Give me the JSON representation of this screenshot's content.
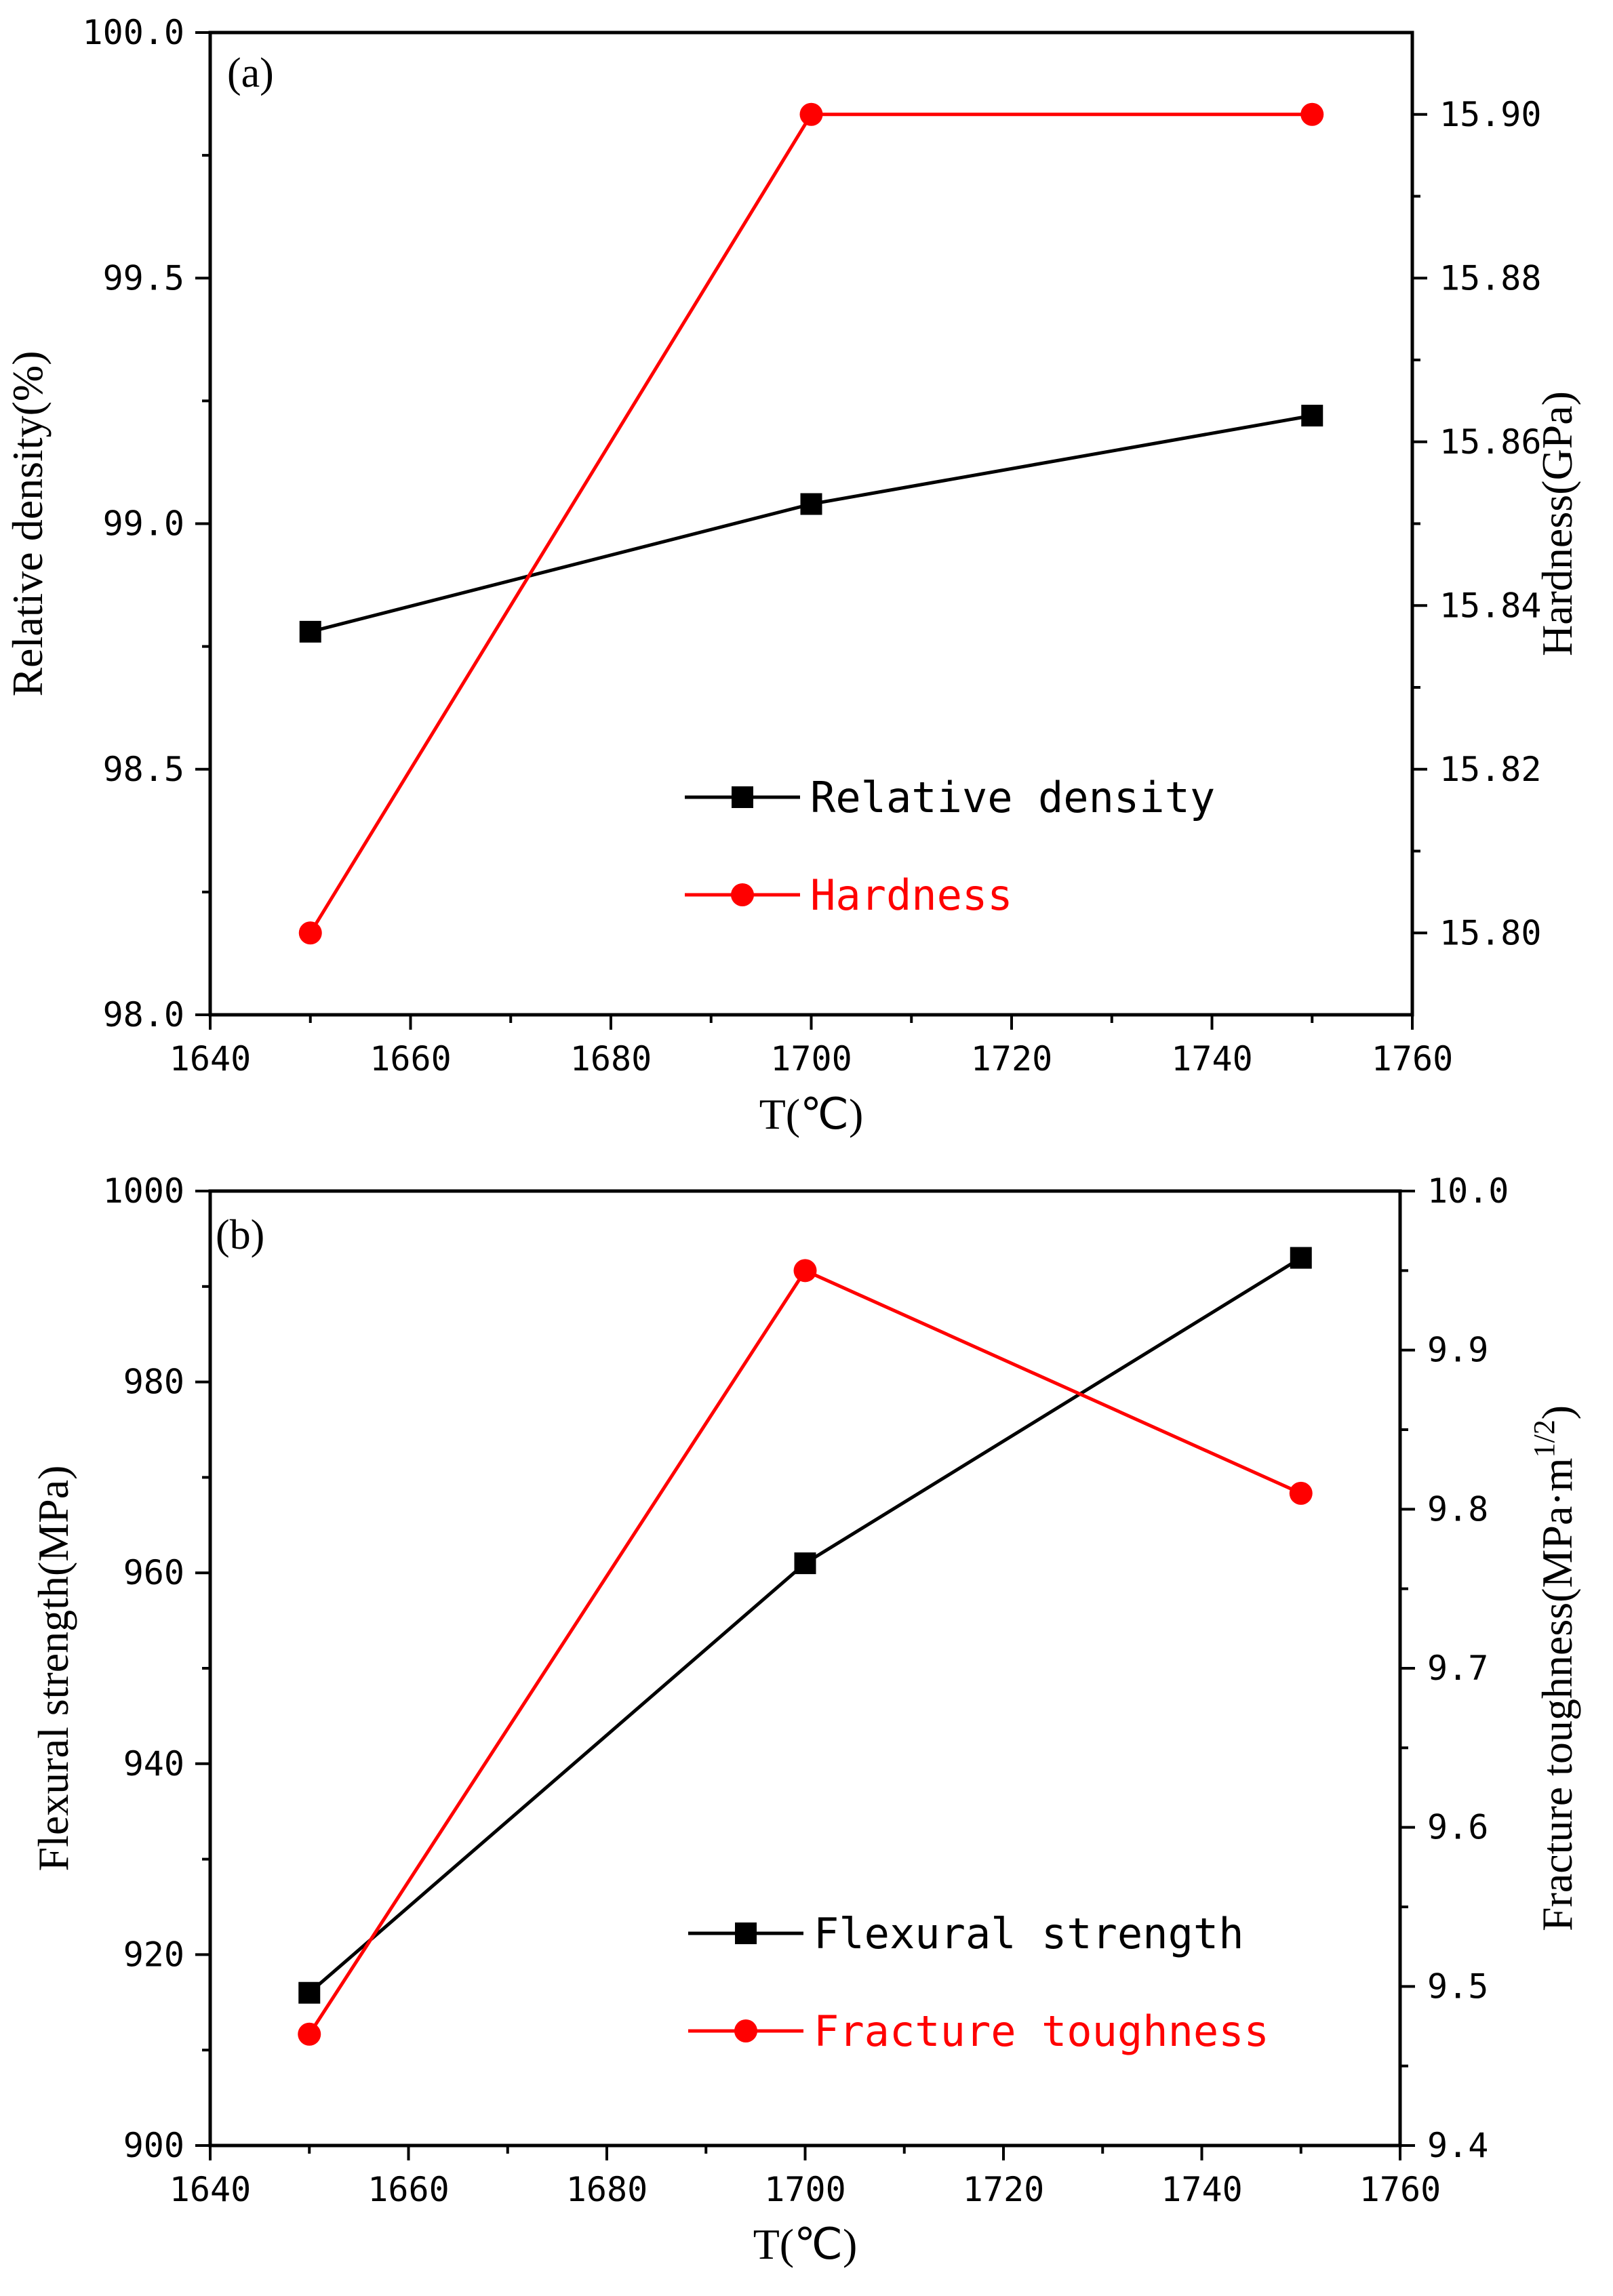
{
  "chart_data": [
    {
      "type": "line",
      "panel_label": "(a)",
      "xlabel": "T(℃)",
      "xlim": [
        1640,
        1760
      ],
      "xticks": [
        1640,
        1660,
        1680,
        1700,
        1720,
        1740,
        1760
      ],
      "xtick_labels": [
        "1640",
        "1660",
        "1680",
        "1700",
        "1720",
        "1740",
        "1760"
      ],
      "ylabel_left": "Relative density(%)",
      "ylim_left": [
        98.0,
        100.0
      ],
      "yticks_left": [
        98.0,
        98.5,
        99.0,
        99.5,
        100.0
      ],
      "ytick_labels_left": [
        "98.0",
        "98.5",
        "99.0",
        "99.5",
        "100.0"
      ],
      "ylabel_right": "Hardness(GPa)",
      "ylim_right": [
        15.79,
        15.91
      ],
      "yticks_right": [
        15.8,
        15.82,
        15.84,
        15.86,
        15.88,
        15.9
      ],
      "ytick_labels_right": [
        "15.80",
        "15.82",
        "15.84",
        "15.86",
        "15.88",
        "15.90"
      ],
      "x": [
        1650,
        1700,
        1750
      ],
      "series": [
        {
          "name": "Relative density",
          "axis": "left",
          "marker": "square",
          "color": "#000000",
          "values": [
            98.78,
            99.04,
            99.22
          ]
        },
        {
          "name": "Hardness",
          "axis": "right",
          "marker": "circle",
          "color": "#ff0000",
          "values": [
            15.8,
            15.9,
            15.9
          ]
        }
      ],
      "legend": "bottom-right",
      "grid": false
    },
    {
      "type": "line",
      "panel_label": "(b)",
      "xlabel": "T(℃)",
      "xlim": [
        1640,
        1760
      ],
      "xticks": [
        1640,
        1660,
        1680,
        1700,
        1720,
        1740,
        1760
      ],
      "xtick_labels": [
        "1640",
        "1660",
        "1680",
        "1700",
        "1720",
        "1740",
        "1760"
      ],
      "ylabel_left": "Flexural strength(MPa)",
      "ylim_left": [
        900,
        1000
      ],
      "yticks_left": [
        900,
        920,
        940,
        960,
        980,
        1000
      ],
      "ytick_labels_left": [
        "900",
        "920",
        "940",
        "960",
        "980",
        "1000"
      ],
      "ylabel_right": "Fracture toughness(MPa·m",
      "ylabel_right_sup": "1/2",
      "ylabel_right_end": ")",
      "ylim_right": [
        9.4,
        10.0
      ],
      "yticks_right": [
        9.4,
        9.5,
        9.6,
        9.7,
        9.8,
        9.9,
        10.0
      ],
      "ytick_labels_right": [
        "9.4",
        "9.5",
        "9.6",
        "9.7",
        "9.8",
        "9.9",
        "10.0"
      ],
      "x": [
        1650,
        1700,
        1750
      ],
      "series": [
        {
          "name": "Flexural strength",
          "axis": "left",
          "marker": "square",
          "color": "#000000",
          "values": [
            916,
            961,
            993
          ]
        },
        {
          "name": "Fracture toughness",
          "axis": "right",
          "marker": "circle",
          "color": "#ff0000",
          "values": [
            9.47,
            9.95,
            9.81
          ]
        }
      ],
      "legend": "bottom-right",
      "grid": false
    }
  ]
}
